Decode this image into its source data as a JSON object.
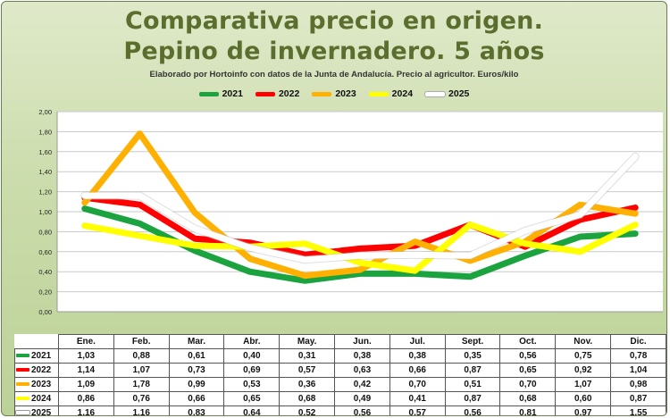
{
  "title_line1": "Comparativa precio en origen.",
  "title_line2": "Pepino de invernadero.  5 años",
  "subtitle": "Elaborado por Hortoinfo con datos de la Junta de Andalucía. Precio al agricultor. Euros/kilo",
  "chart_data": {
    "type": "line",
    "categories": [
      "Ene.",
      "Feb.",
      "Mar.",
      "Abr.",
      "May.",
      "Jun.",
      "Jul.",
      "Sept.",
      "Oct.",
      "Nov.",
      "Dic."
    ],
    "ylim": [
      0,
      2
    ],
    "yticks": [
      "0,00",
      "0,20",
      "0,40",
      "0,60",
      "0,80",
      "1,00",
      "1,20",
      "1,40",
      "1,60",
      "1,80",
      "2,00"
    ],
    "grid": true,
    "legend_position": "top",
    "series": [
      {
        "name": "2021",
        "color": "#1aa33e",
        "values": [
          1.03,
          0.88,
          0.61,
          0.4,
          0.31,
          0.38,
          0.38,
          0.35,
          0.56,
          0.75,
          0.78
        ],
        "labels": [
          "1,03",
          "0,88",
          "0,61",
          "0,40",
          "0,31",
          "0,38",
          "0,38",
          "0,35",
          "0,56",
          "0,75",
          "0,78"
        ]
      },
      {
        "name": "2022",
        "color": "#ff0000",
        "values": [
          1.14,
          1.07,
          0.73,
          0.69,
          0.57,
          0.63,
          0.66,
          0.87,
          0.65,
          0.92,
          1.04
        ],
        "labels": [
          "1,14",
          "1,07",
          "0,73",
          "0,69",
          "0,57",
          "0,63",
          "0,66",
          "0,87",
          "0,65",
          "0,92",
          "1,04"
        ]
      },
      {
        "name": "2023",
        "color": "#ffb000",
        "values": [
          1.09,
          1.78,
          0.99,
          0.53,
          0.36,
          0.42,
          0.7,
          0.51,
          0.7,
          1.07,
          0.98
        ],
        "labels": [
          "1,09",
          "1,78",
          "0,99",
          "0,53",
          "0,36",
          "0,42",
          "0,70",
          "0,51",
          "0,70",
          "1,07",
          "0,98"
        ]
      },
      {
        "name": "2024",
        "color": "#ffff00",
        "values": [
          0.86,
          0.76,
          0.66,
          0.65,
          0.68,
          0.49,
          0.41,
          0.87,
          0.68,
          0.6,
          0.87
        ],
        "labels": [
          "0,86",
          "0,76",
          "0,66",
          "0,65",
          "0,68",
          "0,49",
          "0,41",
          "0,87",
          "0,68",
          "0,60",
          "0,87"
        ]
      },
      {
        "name": "2025",
        "color": "#ffffff",
        "values": [
          1.16,
          1.16,
          0.83,
          0.64,
          0.52,
          0.56,
          0.57,
          0.56,
          0.81,
          0.97,
          1.55
        ],
        "labels": [
          "1,16",
          "1,16",
          "0,83",
          "0,64",
          "0,52",
          "0,56",
          "0,57",
          "0,56",
          "0,81",
          "0,97",
          "1,55"
        ]
      }
    ]
  }
}
